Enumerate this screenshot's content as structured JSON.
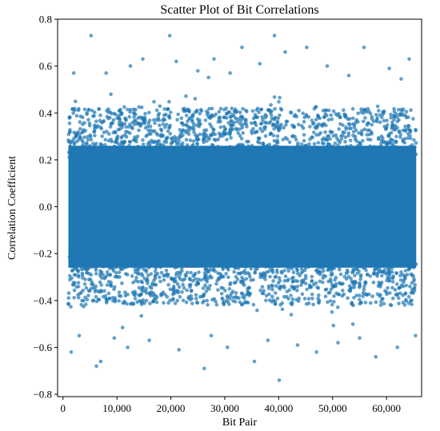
{
  "chart_data": {
    "type": "scatter",
    "title": "Scatter Plot of Bit Correlations",
    "xlabel": "Bit Pair",
    "ylabel": "Correlation Coefficient",
    "xlim": [
      -1000,
      66500
    ],
    "ylim": [
      -0.81,
      0.8
    ],
    "xticks": [
      0,
      10000,
      20000,
      30000,
      40000,
      50000,
      60000
    ],
    "xtick_labels": [
      "0",
      "10,000",
      "20,000",
      "30,000",
      "40,000",
      "50,000",
      "60,000"
    ],
    "yticks": [
      -0.8,
      -0.6,
      -0.4,
      -0.2,
      0.0,
      0.2,
      0.4,
      0.6,
      0.8
    ],
    "ytick_labels": [
      "−0.8",
      "−0.6",
      "−0.4",
      "−0.2",
      "0.0",
      "0.2",
      "0.4",
      "0.6",
      "0.8"
    ],
    "grid": false,
    "marker_color": "#1f77b4",
    "marker_alpha": 0.7,
    "series": [
      {
        "x_range": [
          1000,
          65500
        ],
        "dense_band": [
          -0.4,
          0.4
        ],
        "points": [
          [
            5200,
            0.73
          ],
          [
            19800,
            0.73
          ],
          [
            39200,
            0.73
          ],
          [
            45200,
            0.68
          ],
          [
            33200,
            0.68
          ],
          [
            55800,
            0.68
          ],
          [
            28000,
            0.63
          ],
          [
            64200,
            0.63
          ],
          [
            41200,
            0.66
          ],
          [
            14800,
            0.63
          ],
          [
            21000,
            0.62
          ],
          [
            12500,
            0.6
          ],
          [
            49000,
            0.6
          ],
          [
            60500,
            0.59
          ],
          [
            36500,
            0.61
          ],
          [
            2000,
            0.57
          ],
          [
            8000,
            0.57
          ],
          [
            25000,
            0.58
          ],
          [
            31000,
            0.57
          ],
          [
            53000,
            0.56
          ],
          [
            1500,
            -0.62
          ],
          [
            6200,
            -0.68
          ],
          [
            7000,
            -0.66
          ],
          [
            26200,
            -0.69
          ],
          [
            40100,
            -0.74
          ],
          [
            35500,
            -0.66
          ],
          [
            58000,
            -0.64
          ],
          [
            47000,
            -0.62
          ],
          [
            12000,
            -0.6
          ],
          [
            21500,
            -0.61
          ],
          [
            30500,
            -0.6
          ],
          [
            62000,
            -0.6
          ],
          [
            51000,
            -0.58
          ],
          [
            16000,
            -0.57
          ],
          [
            43500,
            -0.59
          ],
          [
            3000,
            -0.55
          ],
          [
            9500,
            -0.56
          ],
          [
            27500,
            -0.55
          ],
          [
            38000,
            -0.57
          ],
          [
            55000,
            -0.56
          ]
        ]
      }
    ]
  }
}
